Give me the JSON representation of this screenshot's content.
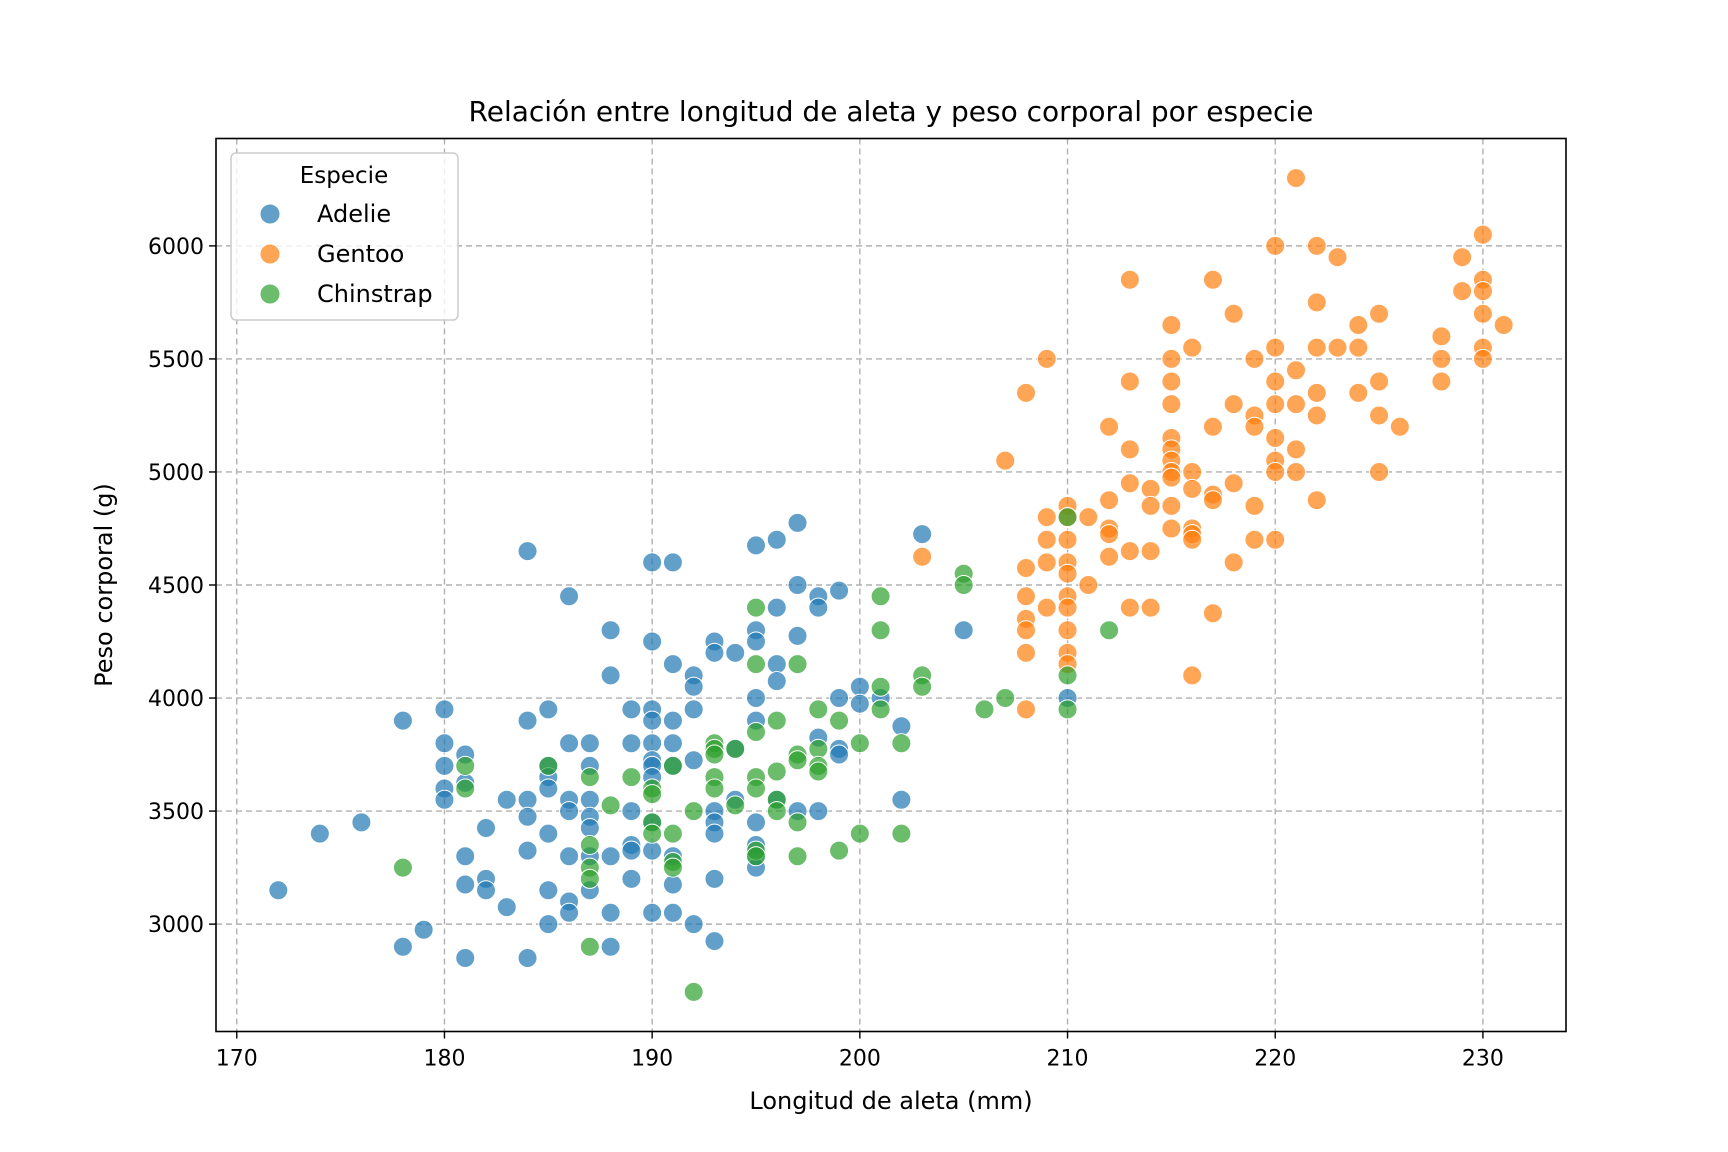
{
  "chart_data": {
    "type": "scatter",
    "title": "Relación entre longitud de aleta y peso corporal por especie",
    "xlabel": "Longitud de aleta (mm)",
    "ylabel": "Peso corporal (g)",
    "xlim": [
      169,
      234
    ],
    "ylim": [
      2525,
      6475
    ],
    "xticks": [
      170,
      180,
      190,
      200,
      210,
      220,
      230
    ],
    "yticks": [
      3000,
      3500,
      4000,
      4500,
      5000,
      5500,
      6000
    ],
    "grid": true,
    "legend": {
      "title": "Especie",
      "placement": "top-left",
      "entries": [
        "Adelie",
        "Gentoo",
        "Chinstrap"
      ]
    },
    "series": [
      {
        "name": "Adelie",
        "color": "#1f77b4",
        "points": [
          [
            172,
            3150
          ],
          [
            174,
            3400
          ],
          [
            176,
            3450
          ],
          [
            178,
            3900
          ],
          [
            178,
            2900
          ],
          [
            179,
            2975
          ],
          [
            180,
            3950
          ],
          [
            180,
            3800
          ],
          [
            180,
            3700
          ],
          [
            180,
            3600
          ],
          [
            180,
            3550
          ],
          [
            181,
            3750
          ],
          [
            181,
            3625
          ],
          [
            181,
            3300
          ],
          [
            181,
            3175
          ],
          [
            181,
            2850
          ],
          [
            182,
            3425
          ],
          [
            182,
            3200
          ],
          [
            182,
            3150
          ],
          [
            183,
            3550
          ],
          [
            183,
            3075
          ],
          [
            184,
            4650
          ],
          [
            184,
            3900
          ],
          [
            184,
            3550
          ],
          [
            184,
            3475
          ],
          [
            184,
            3325
          ],
          [
            184,
            2850
          ],
          [
            185,
            3950
          ],
          [
            185,
            3700
          ],
          [
            185,
            3650
          ],
          [
            185,
            3600
          ],
          [
            185,
            3400
          ],
          [
            185,
            3150
          ],
          [
            185,
            3000
          ],
          [
            186,
            4450
          ],
          [
            186,
            3800
          ],
          [
            186,
            3550
          ],
          [
            186,
            3500
          ],
          [
            186,
            3300
          ],
          [
            186,
            3100
          ],
          [
            186,
            3050
          ],
          [
            187,
            3800
          ],
          [
            187,
            3700
          ],
          [
            187,
            3550
          ],
          [
            187,
            3475
          ],
          [
            187,
            3425
          ],
          [
            187,
            3300
          ],
          [
            187,
            3150
          ],
          [
            188,
            4300
          ],
          [
            188,
            4100
          ],
          [
            188,
            3300
          ],
          [
            188,
            3050
          ],
          [
            188,
            2900
          ],
          [
            189,
            3950
          ],
          [
            189,
            3800
          ],
          [
            189,
            3500
          ],
          [
            189,
            3350
          ],
          [
            189,
            3325
          ],
          [
            189,
            3200
          ],
          [
            190,
            4600
          ],
          [
            190,
            4250
          ],
          [
            190,
            3950
          ],
          [
            190,
            3900
          ],
          [
            190,
            3800
          ],
          [
            190,
            3725
          ],
          [
            190,
            3700
          ],
          [
            190,
            3650
          ],
          [
            190,
            3450
          ],
          [
            190,
            3325
          ],
          [
            190,
            3050
          ],
          [
            191,
            4600
          ],
          [
            191,
            4150
          ],
          [
            191,
            3900
          ],
          [
            191,
            3800
          ],
          [
            191,
            3700
          ],
          [
            191,
            3300
          ],
          [
            191,
            3175
          ],
          [
            191,
            3050
          ],
          [
            192,
            4100
          ],
          [
            192,
            4050
          ],
          [
            192,
            3950
          ],
          [
            192,
            3725
          ],
          [
            192,
            3000
          ],
          [
            193,
            4250
          ],
          [
            193,
            4200
          ],
          [
            193,
            3500
          ],
          [
            193,
            3450
          ],
          [
            193,
            3400
          ],
          [
            193,
            3200
          ],
          [
            193,
            2925
          ],
          [
            194,
            4200
          ],
          [
            194,
            3775
          ],
          [
            194,
            3550
          ],
          [
            195,
            4675
          ],
          [
            195,
            4300
          ],
          [
            195,
            4250
          ],
          [
            195,
            4000
          ],
          [
            195,
            3900
          ],
          [
            195,
            3450
          ],
          [
            195,
            3350
          ],
          [
            195,
            3300
          ],
          [
            195,
            3250
          ],
          [
            196,
            4700
          ],
          [
            196,
            4400
          ],
          [
            196,
            4150
          ],
          [
            196,
            4075
          ],
          [
            196,
            3550
          ],
          [
            197,
            4775
          ],
          [
            197,
            4500
          ],
          [
            197,
            4275
          ],
          [
            197,
            3500
          ],
          [
            198,
            4450
          ],
          [
            198,
            4400
          ],
          [
            198,
            3825
          ],
          [
            198,
            3500
          ],
          [
            199,
            4475
          ],
          [
            199,
            4000
          ],
          [
            199,
            3775
          ],
          [
            199,
            3750
          ],
          [
            200,
            4050
          ],
          [
            200,
            3975
          ],
          [
            201,
            4000
          ],
          [
            202,
            3875
          ],
          [
            202,
            3550
          ],
          [
            203,
            4725
          ],
          [
            205,
            4300
          ],
          [
            210,
            4000
          ]
        ]
      },
      {
        "name": "Gentoo",
        "color": "#ff7f0e",
        "points": [
          [
            203,
            4625
          ],
          [
            207,
            5050
          ],
          [
            208,
            5350
          ],
          [
            208,
            4575
          ],
          [
            208,
            4450
          ],
          [
            208,
            4350
          ],
          [
            208,
            4300
          ],
          [
            208,
            4200
          ],
          [
            208,
            3950
          ],
          [
            209,
            5500
          ],
          [
            209,
            4800
          ],
          [
            209,
            4700
          ],
          [
            209,
            4600
          ],
          [
            209,
            4400
          ],
          [
            210,
            4850
          ],
          [
            210,
            4800
          ],
          [
            210,
            4700
          ],
          [
            210,
            4600
          ],
          [
            210,
            4550
          ],
          [
            210,
            4450
          ],
          [
            210,
            4400
          ],
          [
            210,
            4300
          ],
          [
            210,
            4200
          ],
          [
            210,
            4150
          ],
          [
            211,
            4800
          ],
          [
            211,
            4500
          ],
          [
            212,
            5200
          ],
          [
            212,
            4875
          ],
          [
            212,
            4750
          ],
          [
            212,
            4725
          ],
          [
            212,
            4625
          ],
          [
            213,
            5850
          ],
          [
            213,
            5400
          ],
          [
            213,
            5100
          ],
          [
            213,
            4950
          ],
          [
            213,
            4650
          ],
          [
            213,
            4400
          ],
          [
            214,
            4925
          ],
          [
            214,
            4850
          ],
          [
            214,
            4650
          ],
          [
            214,
            4400
          ],
          [
            215,
            5650
          ],
          [
            215,
            5500
          ],
          [
            215,
            5400
          ],
          [
            215,
            5300
          ],
          [
            215,
            5150
          ],
          [
            215,
            5100
          ],
          [
            215,
            5050
          ],
          [
            215,
            5000
          ],
          [
            215,
            4975
          ],
          [
            215,
            4850
          ],
          [
            215,
            4750
          ],
          [
            216,
            5550
          ],
          [
            216,
            5000
          ],
          [
            216,
            4925
          ],
          [
            216,
            4750
          ],
          [
            216,
            4725
          ],
          [
            216,
            4700
          ],
          [
            216,
            4100
          ],
          [
            217,
            5850
          ],
          [
            217,
            5200
          ],
          [
            217,
            4900
          ],
          [
            217,
            4875
          ],
          [
            217,
            4375
          ],
          [
            218,
            5700
          ],
          [
            218,
            5300
          ],
          [
            218,
            4950
          ],
          [
            218,
            4600
          ],
          [
            219,
            5500
          ],
          [
            219,
            5250
          ],
          [
            219,
            5200
          ],
          [
            219,
            4850
          ],
          [
            219,
            4700
          ],
          [
            220,
            6000
          ],
          [
            220,
            5550
          ],
          [
            220,
            5400
          ],
          [
            220,
            5300
          ],
          [
            220,
            5150
          ],
          [
            220,
            5050
          ],
          [
            220,
            5000
          ],
          [
            220,
            4700
          ],
          [
            221,
            6300
          ],
          [
            221,
            5450
          ],
          [
            221,
            5300
          ],
          [
            221,
            5100
          ],
          [
            221,
            5000
          ],
          [
            222,
            6000
          ],
          [
            222,
            5750
          ],
          [
            222,
            5550
          ],
          [
            222,
            5350
          ],
          [
            222,
            5250
          ],
          [
            222,
            4875
          ],
          [
            223,
            5950
          ],
          [
            223,
            5550
          ],
          [
            224,
            5650
          ],
          [
            224,
            5550
          ],
          [
            224,
            5350
          ],
          [
            225,
            5700
          ],
          [
            225,
            5400
          ],
          [
            225,
            5250
          ],
          [
            225,
            5000
          ],
          [
            226,
            5200
          ],
          [
            228,
            5600
          ],
          [
            228,
            5500
          ],
          [
            228,
            5400
          ],
          [
            229,
            5950
          ],
          [
            229,
            5800
          ],
          [
            230,
            6050
          ],
          [
            230,
            5850
          ],
          [
            230,
            5800
          ],
          [
            230,
            5700
          ],
          [
            230,
            5550
          ],
          [
            230,
            5500
          ],
          [
            231,
            5650
          ]
        ]
      },
      {
        "name": "Chinstrap",
        "color": "#2ca02c",
        "points": [
          [
            178,
            3250
          ],
          [
            181,
            3700
          ],
          [
            181,
            3600
          ],
          [
            185,
            3700
          ],
          [
            187,
            3650
          ],
          [
            187,
            3350
          ],
          [
            187,
            3250
          ],
          [
            187,
            3200
          ],
          [
            187,
            2900
          ],
          [
            188,
            3525
          ],
          [
            189,
            3650
          ],
          [
            190,
            3600
          ],
          [
            190,
            3575
          ],
          [
            190,
            3450
          ],
          [
            190,
            3400
          ],
          [
            191,
            3700
          ],
          [
            191,
            3400
          ],
          [
            191,
            3275
          ],
          [
            191,
            3250
          ],
          [
            192,
            3500
          ],
          [
            192,
            2700
          ],
          [
            193,
            3800
          ],
          [
            193,
            3775
          ],
          [
            193,
            3750
          ],
          [
            193,
            3650
          ],
          [
            193,
            3600
          ],
          [
            194,
            3775
          ],
          [
            194,
            3525
          ],
          [
            195,
            4400
          ],
          [
            195,
            4150
          ],
          [
            195,
            3850
          ],
          [
            195,
            3650
          ],
          [
            195,
            3600
          ],
          [
            195,
            3325
          ],
          [
            195,
            3300
          ],
          [
            196,
            3900
          ],
          [
            196,
            3675
          ],
          [
            196,
            3550
          ],
          [
            196,
            3500
          ],
          [
            197,
            4150
          ],
          [
            197,
            3750
          ],
          [
            197,
            3725
          ],
          [
            197,
            3450
          ],
          [
            197,
            3300
          ],
          [
            198,
            3950
          ],
          [
            198,
            3775
          ],
          [
            198,
            3700
          ],
          [
            198,
            3675
          ],
          [
            199,
            3900
          ],
          [
            199,
            3325
          ],
          [
            200,
            3800
          ],
          [
            200,
            3400
          ],
          [
            201,
            4450
          ],
          [
            201,
            4300
          ],
          [
            201,
            4050
          ],
          [
            201,
            3950
          ],
          [
            202,
            3800
          ],
          [
            202,
            3400
          ],
          [
            203,
            4100
          ],
          [
            203,
            4050
          ],
          [
            205,
            4550
          ],
          [
            205,
            4500
          ],
          [
            206,
            3950
          ],
          [
            207,
            4000
          ],
          [
            210,
            4800
          ],
          [
            210,
            4100
          ],
          [
            210,
            3950
          ],
          [
            212,
            4300
          ]
        ]
      }
    ]
  }
}
